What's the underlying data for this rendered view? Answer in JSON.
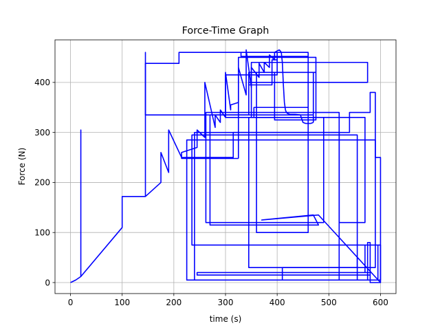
{
  "chart_data": {
    "type": "line",
    "title": "Force-Time Graph",
    "xlabel": "time (s)",
    "ylabel": "Force (N)",
    "xlim": [
      -30,
      630
    ],
    "ylim": [
      -22,
      485
    ],
    "grid": true,
    "line_color": "#0000ff",
    "xticks": [
      {
        "value": 0,
        "label": "0"
      },
      {
        "value": 100,
        "label": "100"
      },
      {
        "value": 200,
        "label": "200"
      },
      {
        "value": 300,
        "label": "300"
      },
      {
        "value": 400,
        "label": "400"
      },
      {
        "value": 500,
        "label": "500"
      },
      {
        "value": 600,
        "label": "600"
      }
    ],
    "yticks": [
      {
        "value": 0,
        "label": "0"
      },
      {
        "value": 100,
        "label": "100"
      },
      {
        "value": 200,
        "label": "200"
      },
      {
        "value": 300,
        "label": "300"
      },
      {
        "value": 400,
        "label": "400"
      }
    ],
    "series": [
      {
        "x": [
          0,
          10,
          20,
          20,
          20,
          100,
          100,
          145,
          145,
          145,
          175,
          175,
          190,
          190,
          215,
          215,
          245,
          245,
          260,
          260,
          280,
          280,
          290,
          290,
          300,
          300,
          310,
          310,
          325,
          325,
          340,
          340,
          350,
          350,
          365,
          365,
          375,
          375,
          385,
          385,
          395,
          395,
          400,
          404,
          406,
          408,
          410,
          412,
          414,
          416,
          418,
          420,
          425,
          435,
          445,
          450,
          455,
          465,
          470
        ],
        "y": [
          0,
          5,
          12,
          305,
          12,
          110,
          172,
          172,
          460,
          172,
          200,
          260,
          220,
          305,
          250,
          260,
          270,
          305,
          290,
          400,
          310,
          335,
          320,
          345,
          330,
          420,
          345,
          355,
          360,
          430,
          375,
          465,
          390,
          430,
          410,
          438,
          420,
          440,
          430,
          455,
          445,
          460,
          463,
          465,
          463,
          460,
          440,
          395,
          360,
          345,
          340,
          338,
          336,
          336,
          335,
          320,
          318,
          318,
          320
        ]
      },
      {
        "x": [
          470,
          470,
          145,
          145,
          210,
          210,
          400,
          400,
          330,
          330,
          460,
          460,
          360,
          360,
          400,
          400,
          390,
          390,
          345,
          345,
          475,
          475,
          355,
          355,
          355,
          460,
          460,
          400,
          400,
          300,
          300,
          470,
          470,
          395,
          395,
          475,
          475,
          325,
          325
        ],
        "y": [
          320,
          335,
          335,
          438,
          438,
          460,
          460,
          460,
          460,
          452,
          452,
          100,
          100,
          420,
          420,
          445,
          445,
          395,
          395,
          420,
          420,
          330,
          330,
          350,
          350,
          350,
          460,
          460,
          415,
          415,
          330,
          330,
          420,
          420,
          325,
          325,
          450,
          450,
          248
        ]
      },
      {
        "x": [
          325,
          215,
          215,
          315,
          315,
          540,
          540,
          580,
          580,
          590,
          590,
          600,
          600,
          480,
          480,
          370,
          370,
          470,
          470,
          480,
          480,
          270,
          270,
          345,
          345,
          575,
          575,
          350,
          350,
          490,
          490,
          262,
          262,
          520,
          520,
          570,
          570,
          345,
          345,
          555,
          555
        ],
        "y": [
          248,
          248,
          250,
          250,
          300,
          300,
          340,
          340,
          380,
          380,
          250,
          250,
          0,
          135,
          135,
          125,
          125,
          135,
          135,
          115,
          115,
          115,
          335,
          335,
          400,
          400,
          440,
          440,
          330,
          330,
          120,
          120,
          340,
          340,
          120,
          120,
          330,
          330,
          30,
          30,
          50
        ]
      },
      {
        "x": [
          555,
          555,
          575,
          575,
          580,
          580,
          245,
          245,
          580,
          580,
          520,
          520,
          240,
          240,
          600,
          600,
          235,
          235,
          555,
          555,
          225,
          225,
          590,
          590,
          410,
          410,
          595,
          595,
          570,
          570,
          580,
          580,
          580,
          600
        ],
        "y": [
          50,
          5,
          5,
          80,
          80,
          20,
          20,
          15,
          15,
          5,
          5,
          300,
          300,
          5,
          5,
          75,
          75,
          295,
          295,
          5,
          5,
          285,
          285,
          30,
          30,
          5,
          5,
          75,
          75,
          20,
          20,
          80,
          0,
          0
        ]
      }
    ]
  }
}
